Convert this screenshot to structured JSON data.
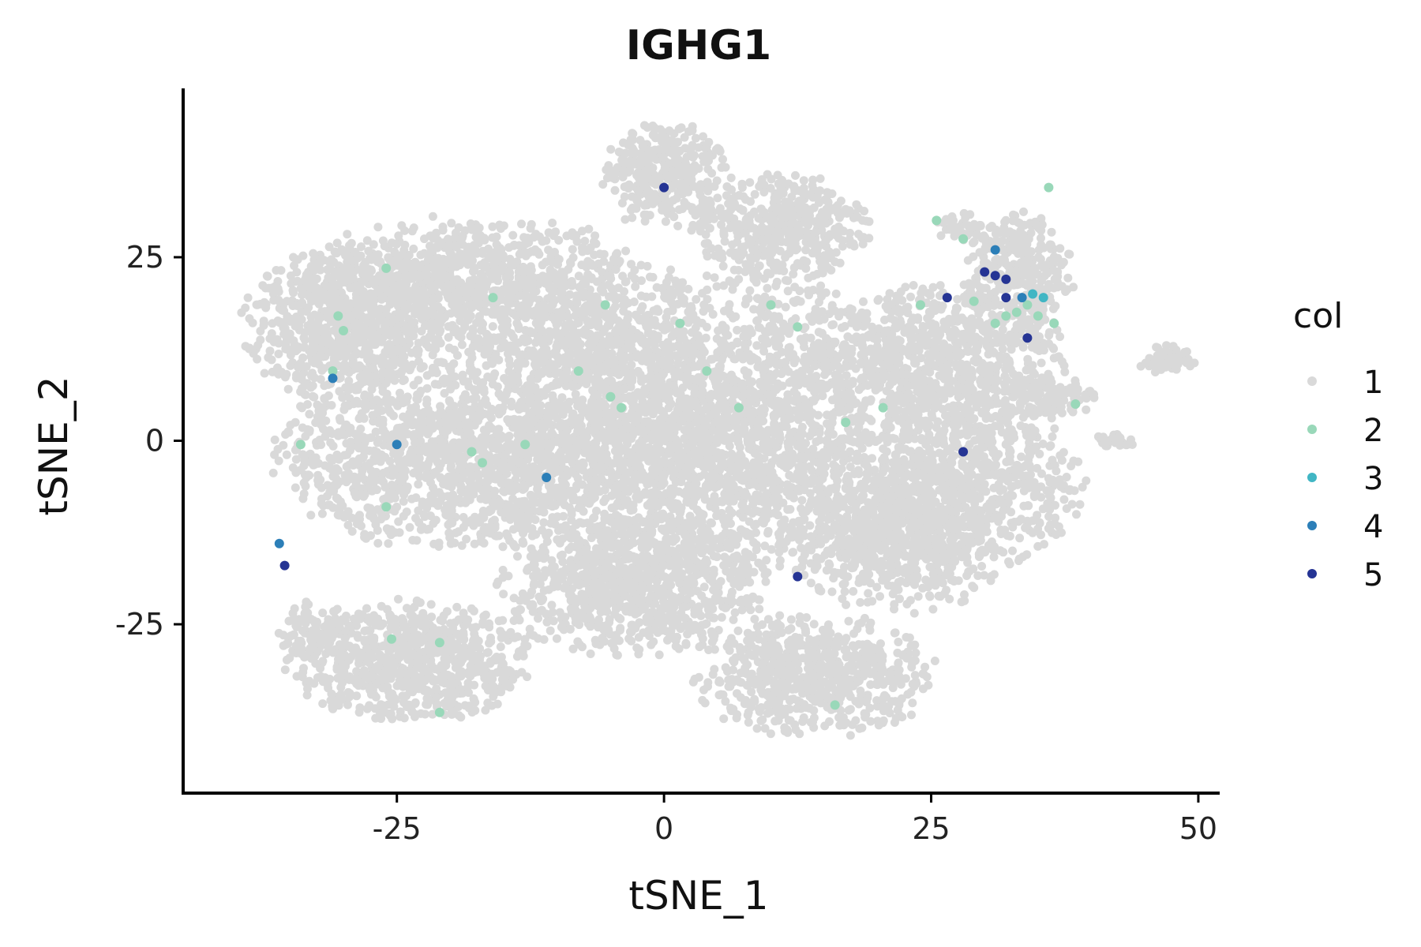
{
  "chart_data": {
    "type": "scatter",
    "title": "IGHG1",
    "xlabel": "tSNE_1",
    "ylabel": "tSNE_2",
    "xlim": [
      -45,
      52
    ],
    "ylim": [
      -48,
      48
    ],
    "x_ticks": [
      -25,
      0,
      25,
      50
    ],
    "y_ticks": [
      25,
      0,
      -25
    ],
    "x_tick_labels": [
      "-25",
      "0",
      "25",
      "50"
    ],
    "y_tick_labels": [
      "25",
      "0",
      "-25"
    ],
    "grid": false,
    "legend": {
      "title": "col",
      "position": "right",
      "entries": [
        {
          "label": "1",
          "color": "#d9d9d9"
        },
        {
          "label": "2",
          "color": "#99d8b9"
        },
        {
          "label": "3",
          "color": "#41b6c4"
        },
        {
          "label": "4",
          "color": "#2c7fb8"
        },
        {
          "label": "5",
          "color": "#253494"
        }
      ]
    },
    "background_regions": [
      {
        "cx": -30,
        "cy": 16,
        "rx": 9,
        "ry": 10,
        "n": 700
      },
      {
        "cx": -22,
        "cy": 22,
        "rx": 11,
        "ry": 8,
        "n": 450
      },
      {
        "cx": -12,
        "cy": 18,
        "rx": 14,
        "ry": 11,
        "n": 800
      },
      {
        "cx": -22,
        "cy": -2,
        "rx": 14,
        "ry": 12,
        "n": 1100
      },
      {
        "cx": -6,
        "cy": 0,
        "rx": 13,
        "ry": 18,
        "n": 1400
      },
      {
        "cx": 8,
        "cy": 2,
        "rx": 15,
        "ry": 20,
        "n": 1800
      },
      {
        "cx": 0,
        "cy": 36,
        "rx": 6,
        "ry": 7,
        "n": 350
      },
      {
        "cx": 11,
        "cy": 29,
        "rx": 8,
        "ry": 7,
        "n": 450
      },
      {
        "cx": -3,
        "cy": -20,
        "rx": 12,
        "ry": 9,
        "n": 800
      },
      {
        "cx": 14,
        "cy": -32,
        "rx": 11,
        "ry": 8,
        "n": 650
      },
      {
        "cx": 22,
        "cy": -14,
        "rx": 10,
        "ry": 9,
        "n": 600
      },
      {
        "cx": 28,
        "cy": -6,
        "rx": 11,
        "ry": 11,
        "n": 750
      },
      {
        "cx": 26,
        "cy": 11,
        "rx": 11,
        "ry": 10,
        "n": 750
      },
      {
        "cx": 33,
        "cy": 22,
        "rx": 5,
        "ry": 9,
        "n": 350
      },
      {
        "cx": 28,
        "cy": 29,
        "rx": 3,
        "ry": 2,
        "n": 50
      },
      {
        "cx": -24,
        "cy": -30,
        "rx": 11,
        "ry": 8,
        "n": 800
      },
      {
        "cx": -33,
        "cy": -26,
        "rx": 3,
        "ry": 4,
        "n": 80
      },
      {
        "cx": 47,
        "cy": 11,
        "rx": 2.5,
        "ry": 2,
        "n": 60
      },
      {
        "cx": 42,
        "cy": 0,
        "rx": 2,
        "ry": 1,
        "n": 30
      },
      {
        "cx": 36,
        "cy": 6,
        "rx": 4,
        "ry": 3,
        "n": 120
      }
    ],
    "points": [
      {
        "x": -30.5,
        "y": 17,
        "col": 2
      },
      {
        "x": -30,
        "y": 15,
        "col": 2
      },
      {
        "x": -26,
        "y": 23.5,
        "col": 2
      },
      {
        "x": -16,
        "y": 19.5,
        "col": 2
      },
      {
        "x": -31,
        "y": 9.5,
        "col": 2
      },
      {
        "x": -34,
        "y": -0.5,
        "col": 2
      },
      {
        "x": -18,
        "y": -1.5,
        "col": 2
      },
      {
        "x": -17,
        "y": -3,
        "col": 2
      },
      {
        "x": -13,
        "y": -0.5,
        "col": 2
      },
      {
        "x": -26,
        "y": -9,
        "col": 2
      },
      {
        "x": -5.5,
        "y": 18.5,
        "col": 2
      },
      {
        "x": -8,
        "y": 9.5,
        "col": 2
      },
      {
        "x": -5,
        "y": 6,
        "col": 2
      },
      {
        "x": -4,
        "y": 4.5,
        "col": 2
      },
      {
        "x": 1.5,
        "y": 16,
        "col": 2
      },
      {
        "x": 4,
        "y": 9.5,
        "col": 2
      },
      {
        "x": 7,
        "y": 4.5,
        "col": 2
      },
      {
        "x": 10,
        "y": 18.5,
        "col": 2
      },
      {
        "x": 12.5,
        "y": 15.5,
        "col": 2
      },
      {
        "x": 17,
        "y": 2.5,
        "col": 2
      },
      {
        "x": 20.5,
        "y": 4.5,
        "col": 2
      },
      {
        "x": 24,
        "y": 18.5,
        "col": 2
      },
      {
        "x": 25.5,
        "y": 30,
        "col": 2
      },
      {
        "x": 28,
        "y": 27.5,
        "col": 2
      },
      {
        "x": 29,
        "y": 19,
        "col": 2
      },
      {
        "x": 31,
        "y": 16,
        "col": 2
      },
      {
        "x": 32,
        "y": 17,
        "col": 2
      },
      {
        "x": 33,
        "y": 17.5,
        "col": 2
      },
      {
        "x": 34,
        "y": 18.5,
        "col": 2
      },
      {
        "x": 35,
        "y": 17,
        "col": 2
      },
      {
        "x": 36.5,
        "y": 16,
        "col": 2
      },
      {
        "x": 36,
        "y": 34.5,
        "col": 2
      },
      {
        "x": 38.5,
        "y": 5,
        "col": 2
      },
      {
        "x": -25.5,
        "y": -27,
        "col": 2
      },
      {
        "x": -21,
        "y": -27.5,
        "col": 2
      },
      {
        "x": -21,
        "y": -37,
        "col": 2
      },
      {
        "x": 16,
        "y": -36,
        "col": 2
      },
      {
        "x": 34.5,
        "y": 20,
        "col": 3
      },
      {
        "x": 35.5,
        "y": 19.5,
        "col": 3
      },
      {
        "x": 31,
        "y": 26,
        "col": 4
      },
      {
        "x": 33.5,
        "y": 19.5,
        "col": 4
      },
      {
        "x": -31,
        "y": 8.5,
        "col": 4
      },
      {
        "x": -25,
        "y": -0.5,
        "col": 4
      },
      {
        "x": -11,
        "y": -5,
        "col": 4
      },
      {
        "x": -36,
        "y": -14,
        "col": 4
      },
      {
        "x": 0,
        "y": 34.5,
        "col": 5
      },
      {
        "x": 30,
        "y": 23,
        "col": 5
      },
      {
        "x": 31,
        "y": 22.5,
        "col": 5
      },
      {
        "x": 32,
        "y": 22,
        "col": 5
      },
      {
        "x": 32,
        "y": 19.5,
        "col": 5
      },
      {
        "x": 34,
        "y": 14,
        "col": 5
      },
      {
        "x": 26.5,
        "y": 19.5,
        "col": 5
      },
      {
        "x": 28,
        "y": -1.5,
        "col": 5
      },
      {
        "x": -35.5,
        "y": -17,
        "col": 5
      },
      {
        "x": 12.5,
        "y": -18.5,
        "col": 5
      }
    ]
  }
}
